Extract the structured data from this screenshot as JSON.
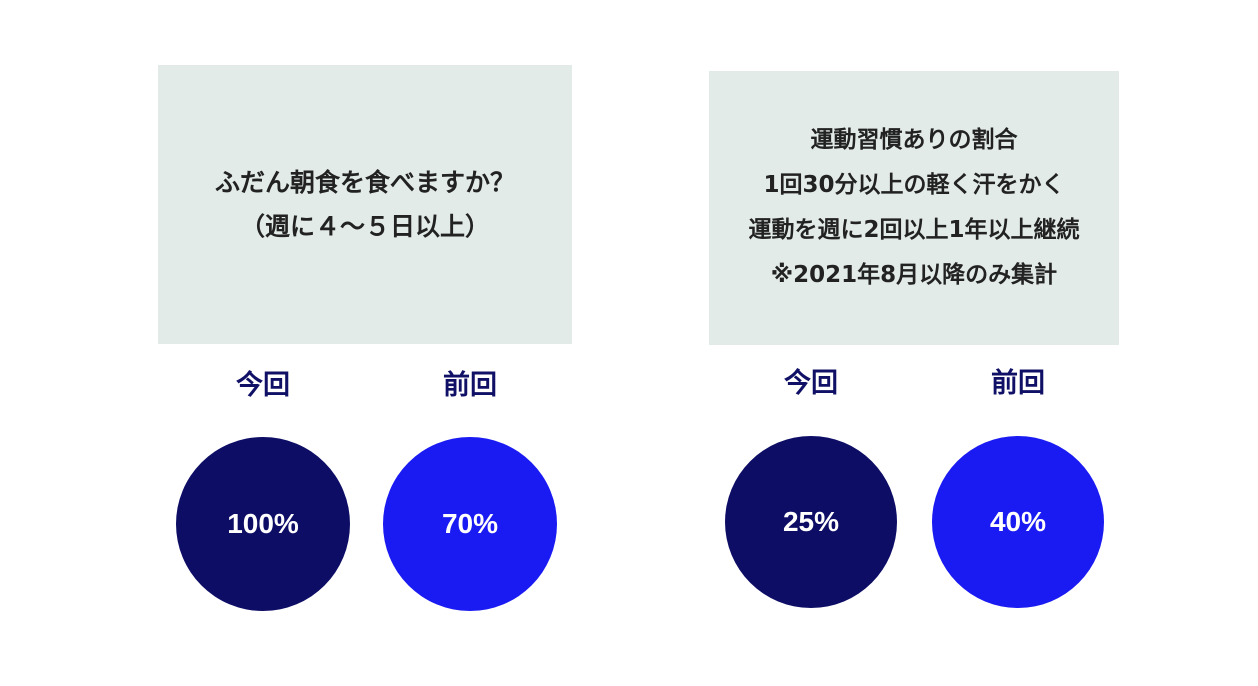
{
  "colors": {
    "box_bg": "#e2ebe8",
    "current": "#0d0d66",
    "previous": "#1a1af2",
    "label_text": "#101066"
  },
  "left_panel": {
    "question_lines": [
      "ふだん朝食を食べますか？",
      "（週に４～５日以上）"
    ],
    "current": {
      "label": "今回",
      "value": "100%"
    },
    "previous": {
      "label": "前回",
      "value": "70%"
    }
  },
  "right_panel": {
    "question_lines": [
      "運動習慣ありの割合",
      "1回30分以上の軽く汗をかく",
      "運動を週に2回以上1年以上継続",
      "※2021年8月以降のみ集計"
    ],
    "current": {
      "label": "今回",
      "value": "25%"
    },
    "previous": {
      "label": "前回",
      "value": "40%"
    }
  }
}
